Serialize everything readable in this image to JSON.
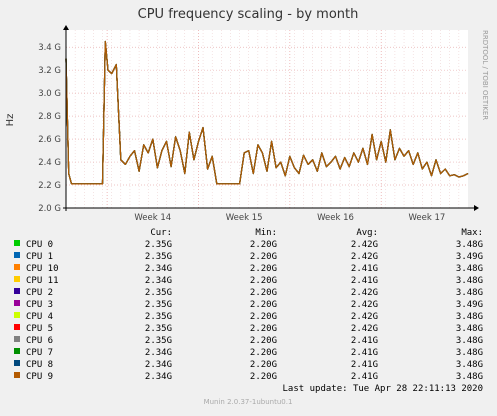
{
  "chart_data": {
    "type": "line",
    "title": "CPU frequency scaling - by month",
    "ylabel": "Hz",
    "y_ticks": [
      "2.0 G",
      "2.2 G",
      "2.4 G",
      "2.6 G",
      "2.8 G",
      "3.0 G",
      "3.2 G",
      "3.4 G"
    ],
    "ylim": [
      2.0,
      3.55
    ],
    "x_ticks": [
      "Week 14",
      "Week 15",
      "Week 16",
      "Week 17"
    ],
    "side_label": "RRDTOOL / TOBI OETIKER",
    "grid": true,
    "x_days": [
      0,
      0.3,
      0.6,
      1,
      1.5,
      2,
      2.5,
      3,
      3.5,
      4,
      4.3,
      4.6,
      5,
      5.5,
      6,
      6.5,
      7,
      7.5,
      8,
      8.5,
      9,
      9.5,
      10,
      10.5,
      11,
      11.5,
      12,
      12.5,
      13,
      13.5,
      14,
      14.5,
      15,
      15.5,
      16,
      16.5,
      17,
      17.5,
      18,
      18.5,
      19,
      19.5,
      20,
      20.5,
      21,
      21.5,
      22,
      22.5,
      23,
      23.5,
      24,
      24.5,
      25,
      25.5,
      26,
      26.5,
      27,
      27.5,
      28,
      28.5,
      29,
      29.5,
      30,
      30.5,
      31,
      31.5,
      32,
      32.5,
      33,
      33.5,
      34,
      34.5,
      35,
      35.5,
      36,
      36.5,
      37,
      37.5,
      38,
      38.5,
      39,
      39.5,
      40,
      40.5,
      41,
      41.5,
      42,
      42.5,
      43,
      43.5,
      44
    ],
    "series_values": [
      3.3,
      2.3,
      2.21,
      2.21,
      2.21,
      2.21,
      2.21,
      2.21,
      2.21,
      2.21,
      3.45,
      3.2,
      3.17,
      3.25,
      2.42,
      2.38,
      2.45,
      2.5,
      2.32,
      2.55,
      2.48,
      2.6,
      2.35,
      2.5,
      2.58,
      2.36,
      2.62,
      2.5,
      2.3,
      2.66,
      2.42,
      2.58,
      2.7,
      2.34,
      2.45,
      2.21,
      2.21,
      2.21,
      2.21,
      2.21,
      2.21,
      2.48,
      2.5,
      2.3,
      2.55,
      2.48,
      2.32,
      2.58,
      2.35,
      2.4,
      2.28,
      2.45,
      2.35,
      2.3,
      2.46,
      2.38,
      2.42,
      2.32,
      2.48,
      2.36,
      2.4,
      2.45,
      2.34,
      2.44,
      2.36,
      2.48,
      2.4,
      2.52,
      2.38,
      2.64,
      2.42,
      2.58,
      2.4,
      2.68,
      2.42,
      2.52,
      2.45,
      2.5,
      2.38,
      2.48,
      2.34,
      2.4,
      2.28,
      2.42,
      2.3,
      2.34,
      2.28,
      2.29,
      2.27,
      2.28,
      2.3,
      2.24,
      2.44,
      2.32,
      2.37
    ],
    "series": [
      {
        "name": "CPU 0",
        "color": "#00cc00",
        "cur": "2.35G",
        "min": "2.20G",
        "avg": "2.42G",
        "max": "3.48G"
      },
      {
        "name": "CPU 1",
        "color": "#0066b3",
        "cur": "2.35G",
        "min": "2.20G",
        "avg": "2.42G",
        "max": "3.49G"
      },
      {
        "name": "CPU 10",
        "color": "#ff8000",
        "cur": "2.34G",
        "min": "2.20G",
        "avg": "2.41G",
        "max": "3.48G"
      },
      {
        "name": "CPU 11",
        "color": "#ffcc00",
        "cur": "2.34G",
        "min": "2.20G",
        "avg": "2.41G",
        "max": "3.48G"
      },
      {
        "name": "CPU 2",
        "color": "#330099",
        "cur": "2.35G",
        "min": "2.20G",
        "avg": "2.42G",
        "max": "3.48G"
      },
      {
        "name": "CPU 3",
        "color": "#990099",
        "cur": "2.35G",
        "min": "2.20G",
        "avg": "2.42G",
        "max": "3.49G"
      },
      {
        "name": "CPU 4",
        "color": "#ccff00",
        "cur": "2.35G",
        "min": "2.20G",
        "avg": "2.42G",
        "max": "3.48G"
      },
      {
        "name": "CPU 5",
        "color": "#ff0000",
        "cur": "2.35G",
        "min": "2.20G",
        "avg": "2.42G",
        "max": "3.48G"
      },
      {
        "name": "CPU 6",
        "color": "#808080",
        "cur": "2.35G",
        "min": "2.20G",
        "avg": "2.41G",
        "max": "3.48G"
      },
      {
        "name": "CPU 7",
        "color": "#008f00",
        "cur": "2.34G",
        "min": "2.20G",
        "avg": "2.41G",
        "max": "3.48G"
      },
      {
        "name": "CPU 8",
        "color": "#00487d",
        "cur": "2.34G",
        "min": "2.20G",
        "avg": "2.41G",
        "max": "3.48G"
      },
      {
        "name": "CPU 9",
        "color": "#b35a00",
        "cur": "2.34G",
        "min": "2.20G",
        "avg": "2.41G",
        "max": "3.48G"
      }
    ]
  },
  "legend": {
    "headers": {
      "cur": "Cur:",
      "min": "Min:",
      "avg": "Avg:",
      "max": "Max:"
    }
  },
  "footer": {
    "last_update": "Last update: Tue Apr 28 22:11:13 2020",
    "version": "Munin 2.0.37-1ubuntu0.1"
  }
}
